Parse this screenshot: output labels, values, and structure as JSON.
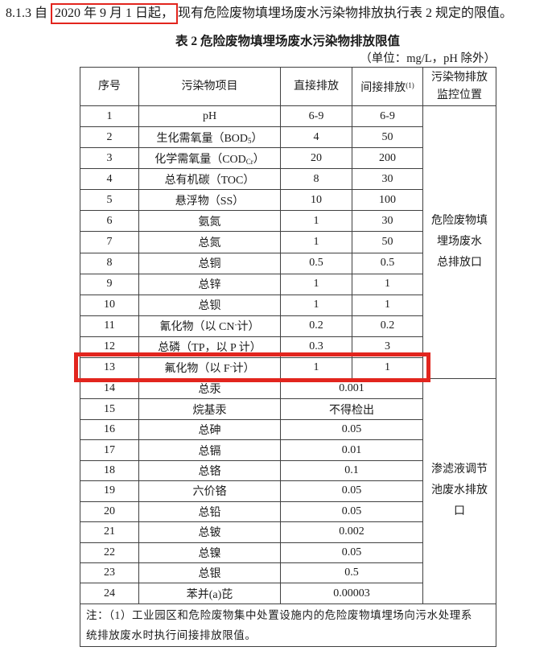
{
  "document": {
    "clause": {
      "prefix": "8.1.3 自 ",
      "highlighted_date": "2020 年 9 月 1 日起，",
      "suffix": "现有危险废物填埋场废水污染物排放执行表 2 规定的限值。"
    },
    "table_title": "表 2  危险废物填埋场废水污染物排放限值",
    "unit_note": "（单位：mg/L，pH 除外）"
  },
  "table": {
    "headers": {
      "no": "序号",
      "pollutant": "污染物项目",
      "direct": "直接排放",
      "indirect": "间接排放",
      "indirect_sup": "(1)",
      "monitor": "污染物排放\n监控位置"
    },
    "groups": [
      {
        "monitor_label": "危险废物填\n埋场废水\n总排放口",
        "rows": [
          {
            "no": "1",
            "name": [
              "pH"
            ],
            "direct": "6-9",
            "indirect": "6-9"
          },
          {
            "no": "2",
            "name": [
              "生化需氧量（BOD",
              {
                "sub": "5"
              },
              "）"
            ],
            "direct": "4",
            "indirect": "50"
          },
          {
            "no": "3",
            "name": [
              "化学需氧量（COD",
              {
                "sub": "Cr"
              },
              "）"
            ],
            "direct": "20",
            "indirect": "200"
          },
          {
            "no": "4",
            "name": [
              "总有机碳（TOC）"
            ],
            "direct": "8",
            "indirect": "30"
          },
          {
            "no": "5",
            "name": [
              "悬浮物（SS）"
            ],
            "direct": "10",
            "indirect": "100"
          },
          {
            "no": "6",
            "name": [
              "氨氮"
            ],
            "direct": "1",
            "indirect": "30"
          },
          {
            "no": "7",
            "name": [
              "总氮"
            ],
            "direct": "1",
            "indirect": "50"
          },
          {
            "no": "8",
            "name": [
              "总铜"
            ],
            "direct": "0.5",
            "indirect": "0.5"
          },
          {
            "no": "9",
            "name": [
              "总锌"
            ],
            "direct": "1",
            "indirect": "1"
          },
          {
            "no": "10",
            "name": [
              "总钡"
            ],
            "direct": "1",
            "indirect": "1"
          },
          {
            "no": "11",
            "name": [
              "氰化物（以 CN",
              {
                "sup": "-"
              },
              "计）"
            ],
            "direct": "0.2",
            "indirect": "0.2"
          },
          {
            "no": "12",
            "name": [
              "总磷（TP，以 P 计）"
            ],
            "direct": "0.3",
            "indirect": "3"
          },
          {
            "no": "13",
            "name": [
              "氟化物（以 F",
              {
                "sup": "-"
              },
              "计）"
            ],
            "direct": "1",
            "indirect": "1",
            "highlighted": true
          }
        ]
      },
      {
        "monitor_label": "渗滤液调节\n池废水排放\n口",
        "rows": [
          {
            "no": "14",
            "name": [
              "总汞"
            ],
            "value": "0.001"
          },
          {
            "no": "15",
            "name": [
              "烷基汞"
            ],
            "value": "不得检出"
          },
          {
            "no": "16",
            "name": [
              "总砷"
            ],
            "value": "0.05"
          },
          {
            "no": "17",
            "name": [
              "总镉"
            ],
            "value": "0.01"
          },
          {
            "no": "18",
            "name": [
              "总铬"
            ],
            "value": "0.1"
          },
          {
            "no": "19",
            "name": [
              "六价铬"
            ],
            "value": "0.05"
          },
          {
            "no": "20",
            "name": [
              "总铅"
            ],
            "value": "0.05"
          },
          {
            "no": "21",
            "name": [
              "总铍"
            ],
            "value": "0.002"
          },
          {
            "no": "22",
            "name": [
              "总镍"
            ],
            "value": "0.05"
          },
          {
            "no": "23",
            "name": [
              "总银"
            ],
            "value": "0.5"
          },
          {
            "no": "24",
            "name": [
              "苯并(a)芘"
            ],
            "value": "0.00003"
          }
        ]
      }
    ],
    "note": "注：（1）工业园区和危险废物集中处置设施内的危险废物填埋场向污水处理系\n统排放废水时执行间接排放限值。"
  },
  "colors": {
    "highlight_red": "#e2251e",
    "table_border": "#404040",
    "text": "#1b1b1b"
  }
}
